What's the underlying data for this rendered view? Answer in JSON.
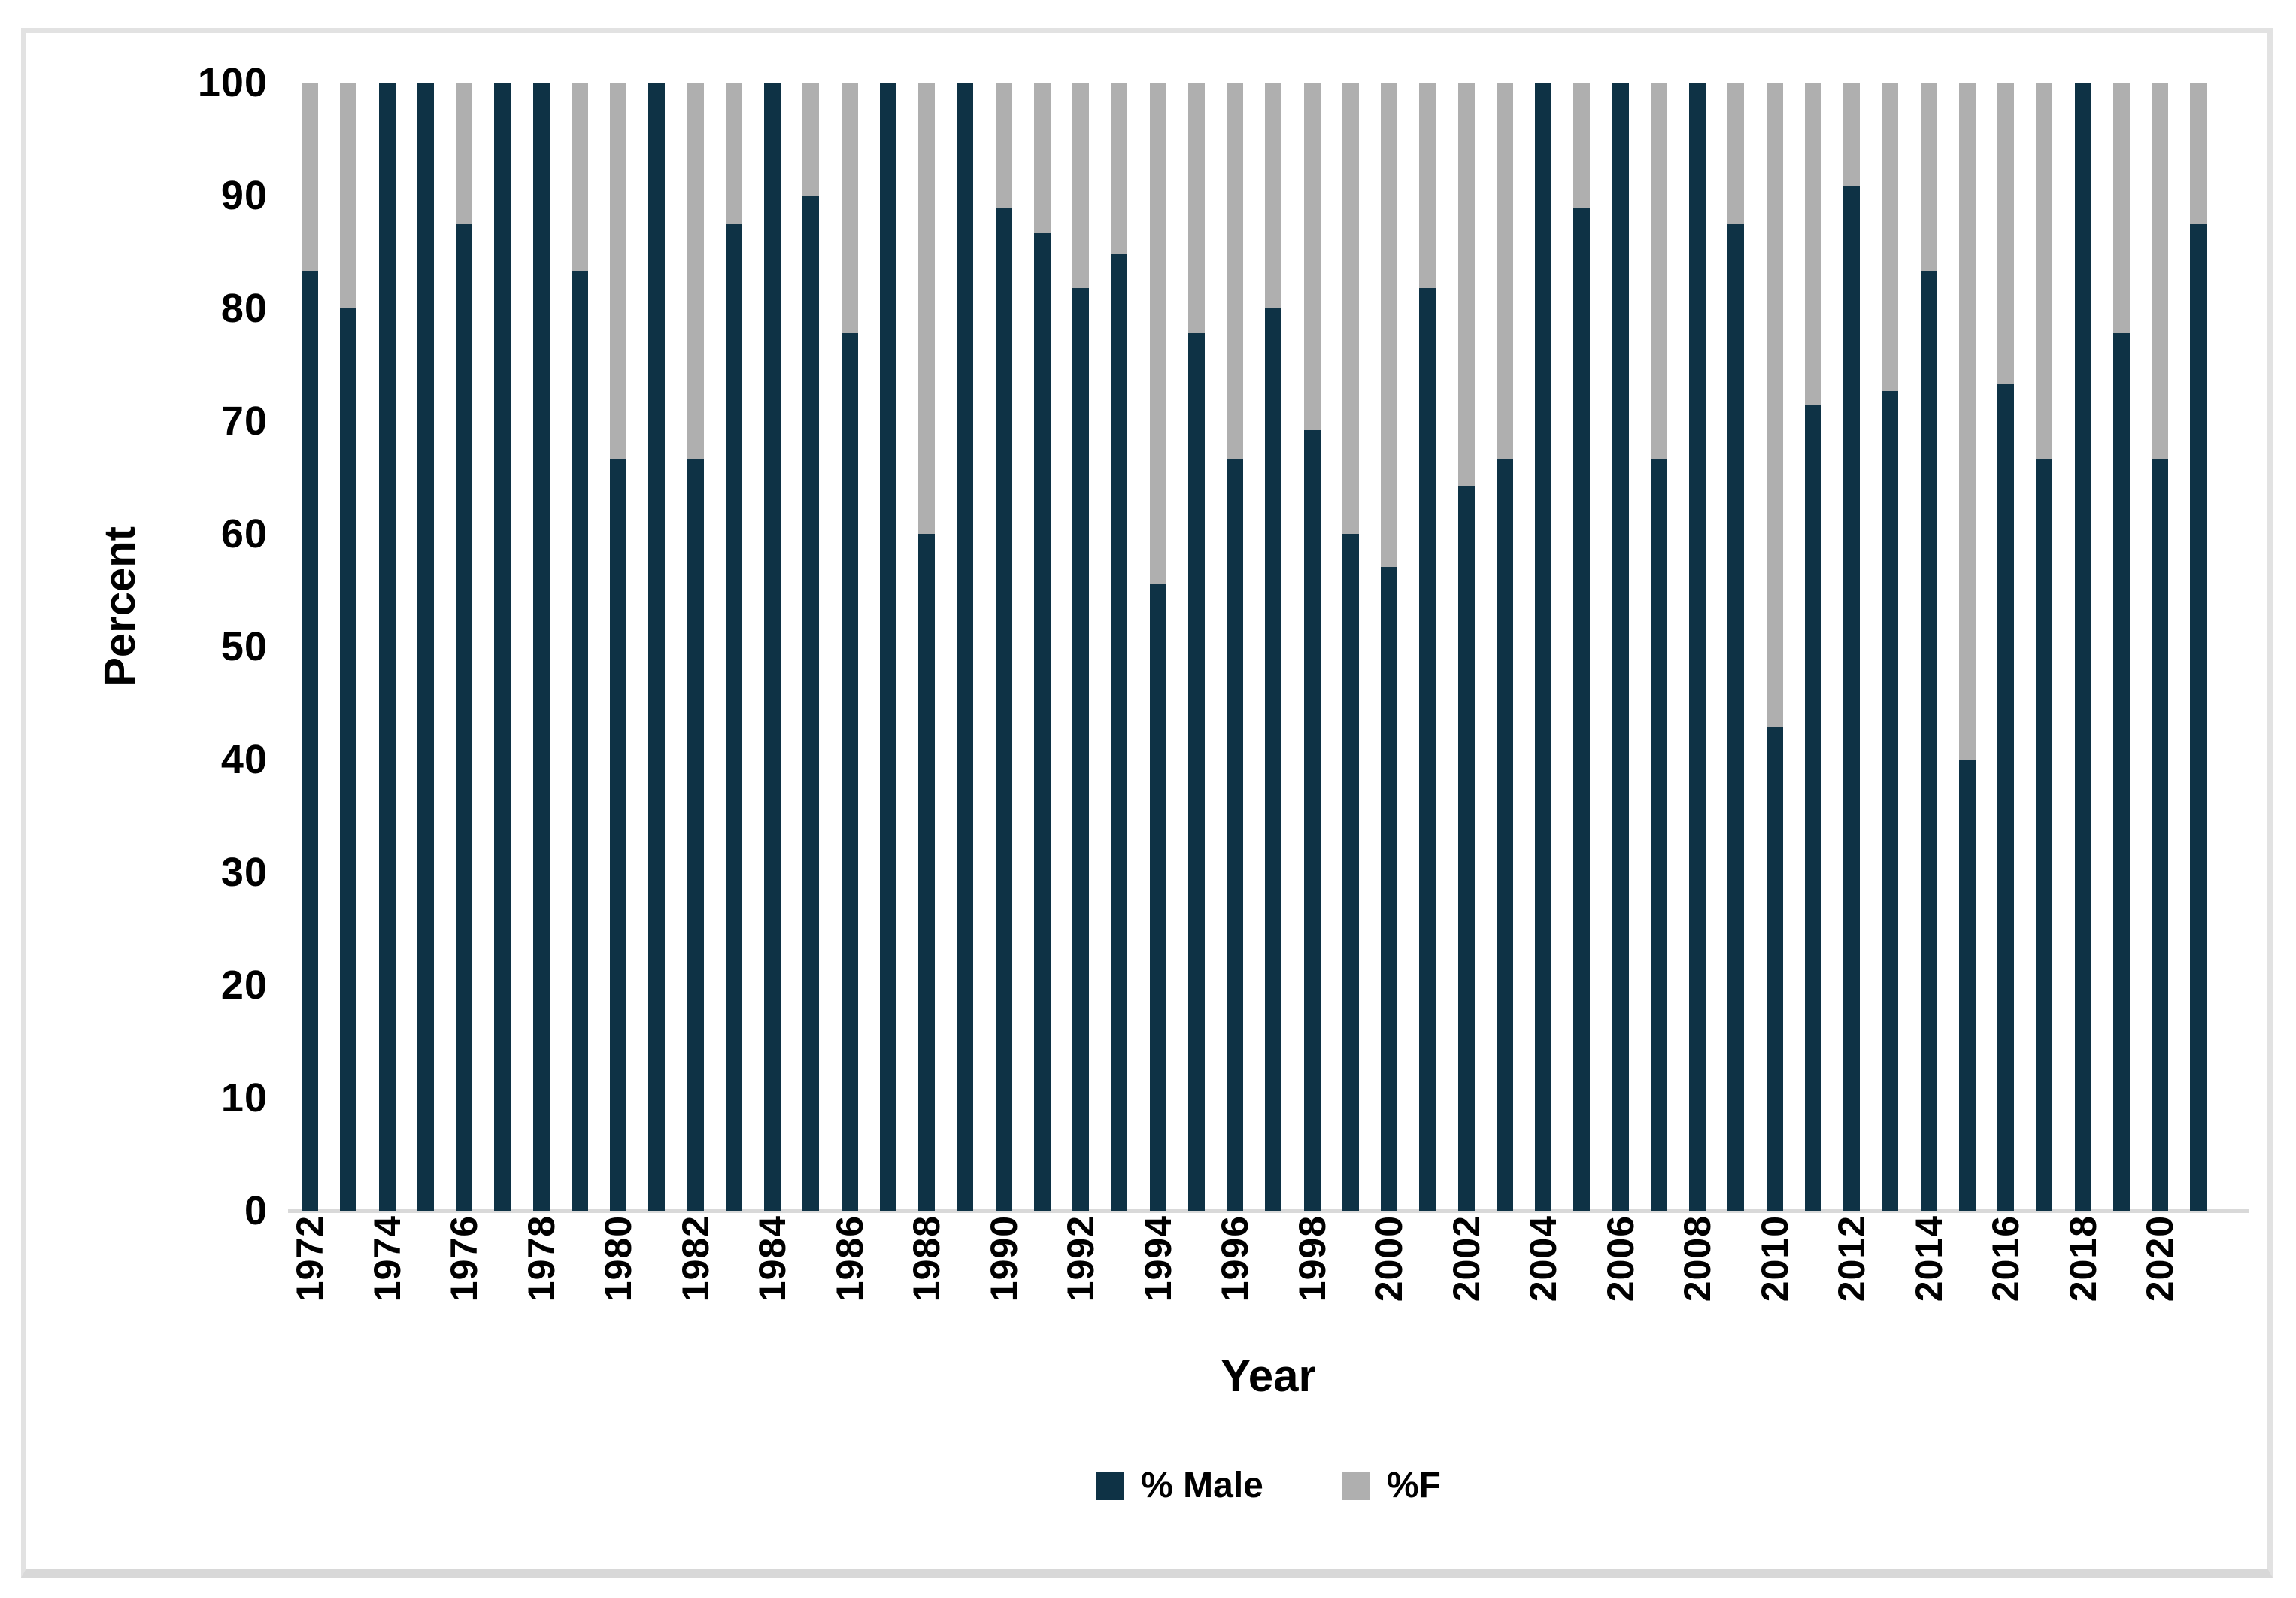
{
  "figure": {
    "frame_border_color": "#e2e2e2",
    "background_color": "#ffffff",
    "axis_line_color": "#d9d9d9"
  },
  "chart_data": {
    "type": "bar",
    "stacked": true,
    "title": "",
    "xlabel": "Year",
    "ylabel": "Percent",
    "ylim": [
      0,
      100
    ],
    "yticks": [
      0,
      10,
      20,
      30,
      40,
      50,
      60,
      70,
      80,
      90,
      100
    ],
    "xticks": [
      1972,
      1974,
      1976,
      1978,
      1980,
      1982,
      1984,
      1986,
      1988,
      1990,
      1992,
      1994,
      1996,
      1998,
      2000,
      2002,
      2004,
      2006,
      2008,
      2010,
      2012,
      2014,
      2016,
      2018,
      2020
    ],
    "grid": false,
    "legend_position": "bottom-center",
    "categories": [
      1972,
      1973,
      1974,
      1975,
      1976,
      1977,
      1978,
      1979,
      1980,
      1981,
      1982,
      1983,
      1984,
      1985,
      1986,
      1987,
      1988,
      1989,
      1990,
      1991,
      1992,
      1993,
      1994,
      1995,
      1996,
      1997,
      1998,
      1999,
      2000,
      2001,
      2002,
      2003,
      2004,
      2005,
      2006,
      2007,
      2008,
      2009,
      2010,
      2011,
      2012,
      2013,
      2014,
      2015,
      2016,
      2017,
      2018,
      2019,
      2020,
      2021
    ],
    "series": [
      {
        "name": "% Male",
        "color": "#0e3245",
        "values": [
          83.3,
          80,
          100,
          100,
          87.5,
          100,
          100,
          83.3,
          66.7,
          100,
          66.7,
          87.5,
          100,
          90,
          77.8,
          100,
          60,
          100,
          88.9,
          86.7,
          81.8,
          84.8,
          55.6,
          77.8,
          66.7,
          80,
          69.2,
          60,
          57.1,
          81.8,
          64.3,
          66.7,
          100,
          88.9,
          100,
          66.7,
          100,
          87.5,
          42.9,
          71.4,
          90.9,
          72.7,
          83.3,
          40,
          73.3,
          66.7,
          100,
          77.8,
          66.7,
          87.5
        ]
      },
      {
        "name": "%F",
        "color": "#afafaf",
        "values": [
          16.7,
          20,
          0,
          0,
          12.5,
          0,
          0,
          16.7,
          33.3,
          0,
          33.3,
          12.5,
          0,
          10,
          22.2,
          0,
          40,
          0,
          11.1,
          13.3,
          18.2,
          15.2,
          44.4,
          22.2,
          33.3,
          20,
          30.8,
          40,
          42.9,
          18.2,
          35.7,
          33.3,
          0,
          11.1,
          0,
          33.3,
          0,
          12.5,
          57.1,
          28.6,
          9.1,
          27.3,
          16.7,
          60,
          26.7,
          33.3,
          0,
          22.2,
          33.3,
          12.5
        ]
      }
    ]
  }
}
